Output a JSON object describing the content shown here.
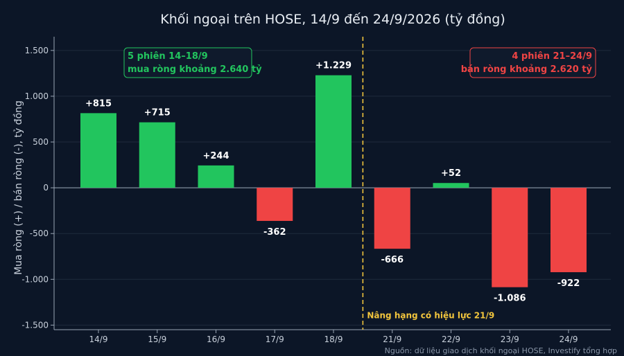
{
  "colors": {
    "background": "#0c1627",
    "buy": "#22c55e",
    "sell": "#ef4444",
    "event_line": "#f2c53d",
    "grid": "#1f2b3d",
    "axis": "#9aa6b6"
  },
  "chart_data": {
    "type": "bar",
    "title": "Khối ngoại trên HOSE, 14/9 đến 24/9/2026 (tỷ đồng)",
    "xlabel": "",
    "ylabel": "Mua ròng (+) / bán ròng (-), tỷ đồng",
    "ylim": [
      -1550,
      1650
    ],
    "yticks": [
      1500,
      1000,
      500,
      0,
      -500,
      -1000,
      -1500
    ],
    "ytick_labels": [
      "1.500",
      "1.000",
      "500",
      "0",
      "-500",
      "-1.000",
      "-1.500"
    ],
    "grid": true,
    "categories": [
      "14/9",
      "15/9",
      "16/9",
      "17/9",
      "18/9",
      "21/9",
      "22/9",
      "23/9",
      "24/9"
    ],
    "values": [
      815,
      715,
      244,
      -362,
      1229,
      -666,
      52,
      -1086,
      -922
    ],
    "value_labels": [
      "+815",
      "+715",
      "+244",
      "-362",
      "+1.229",
      "-666",
      "+52",
      "-1.086",
      "-922"
    ],
    "event": {
      "label": "Nâng hạng có hiệu lực 21/9",
      "between": [
        "18/9",
        "21/9"
      ]
    },
    "annotations": [
      {
        "lines": [
          "5 phiên 14–18/9",
          "mua ròng khoảng 2.640 tỷ"
        ],
        "position": "top-left",
        "color": "buy"
      },
      {
        "lines": [
          "4 phiên 21–24/9",
          "bán ròng khoảng 2.620 tỷ"
        ],
        "position": "top-right",
        "color": "sell"
      }
    ],
    "source": "Nguồn: dữ liệu giao dịch khối ngoại HOSE, Investify tổng hợp"
  }
}
